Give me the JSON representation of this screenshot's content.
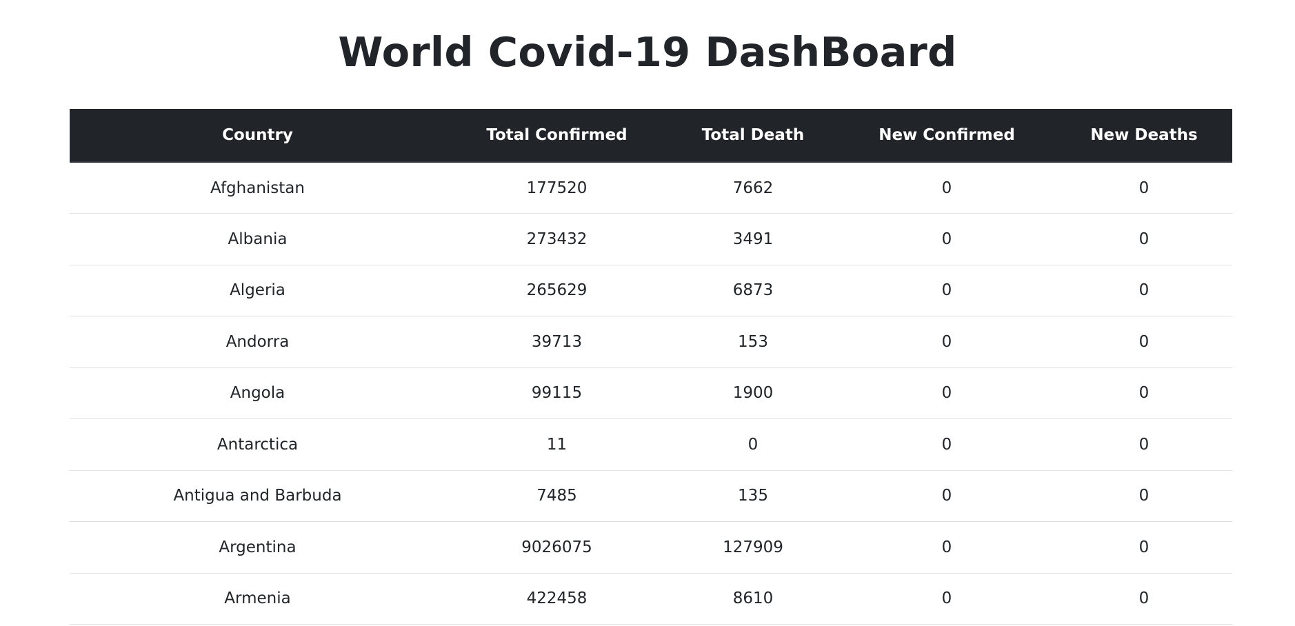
{
  "page": {
    "title": "World Covid-19 DashBoard"
  },
  "table": {
    "headers": {
      "country": "Country",
      "total_confirmed": "Total Confirmed",
      "total_death": "Total Death",
      "new_confirmed": "New Confirmed",
      "new_deaths": "New Deaths"
    },
    "rows": [
      {
        "country": "Afghanistan",
        "total_confirmed": "177520",
        "total_death": "7662",
        "new_confirmed": "0",
        "new_deaths": "0"
      },
      {
        "country": "Albania",
        "total_confirmed": "273432",
        "total_death": "3491",
        "new_confirmed": "0",
        "new_deaths": "0"
      },
      {
        "country": "Algeria",
        "total_confirmed": "265629",
        "total_death": "6873",
        "new_confirmed": "0",
        "new_deaths": "0"
      },
      {
        "country": "Andorra",
        "total_confirmed": "39713",
        "total_death": "153",
        "new_confirmed": "0",
        "new_deaths": "0"
      },
      {
        "country": "Angola",
        "total_confirmed": "99115",
        "total_death": "1900",
        "new_confirmed": "0",
        "new_deaths": "0"
      },
      {
        "country": "Antarctica",
        "total_confirmed": "11",
        "total_death": "0",
        "new_confirmed": "0",
        "new_deaths": "0"
      },
      {
        "country": "Antigua and Barbuda",
        "total_confirmed": "7485",
        "total_death": "135",
        "new_confirmed": "0",
        "new_deaths": "0"
      },
      {
        "country": "Argentina",
        "total_confirmed": "9026075",
        "total_death": "127909",
        "new_confirmed": "0",
        "new_deaths": "0"
      },
      {
        "country": "Armenia",
        "total_confirmed": "422458",
        "total_death": "8610",
        "new_confirmed": "0",
        "new_deaths": "0"
      }
    ]
  },
  "colors": {
    "header_background": "#212529",
    "header_text": "#ffffff",
    "body_text": "#212529",
    "row_border": "#dee2e6",
    "page_background": "#ffffff"
  }
}
